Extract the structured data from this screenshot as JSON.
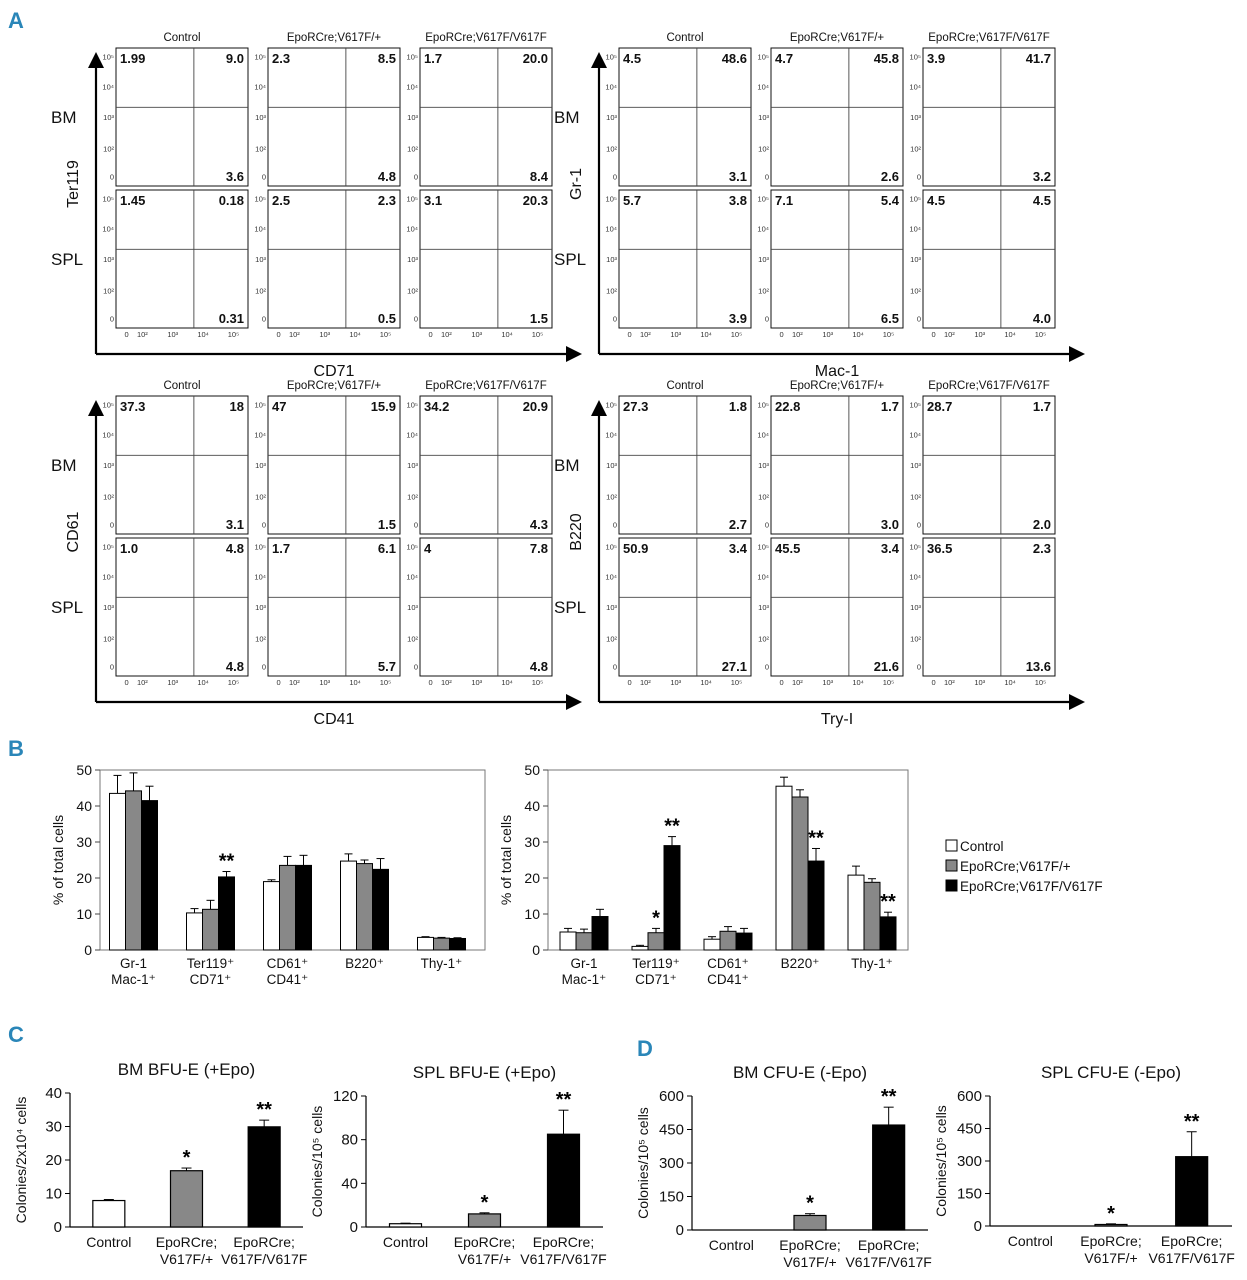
{
  "panels": {
    "A": "A",
    "B": "B",
    "C": "C",
    "D": "D"
  },
  "colors": {
    "control": "#ffffff",
    "heterozygous": "#888888",
    "homozygous": "#000000",
    "panel_letter": "#2a86b8"
  },
  "flow": [
    {
      "id": "ter119-cd71",
      "y_label": "Ter119",
      "x_label": "CD71",
      "columns": [
        "Control",
        "EpoRCre;V617F/+",
        "EpoRCre;V617F/V617F"
      ],
      "rows": [
        "BM",
        "SPL"
      ],
      "tick_labels_x": [
        "0",
        "10²",
        "10³",
        "10⁴",
        "10⁵"
      ],
      "tick_labels_y": [
        "0",
        "10²",
        "10³",
        "10⁴",
        "10⁵"
      ],
      "values": [
        [
          [
            "1.99",
            "9.0",
            "3.6"
          ],
          [
            "2.3",
            "8.5",
            "4.8"
          ],
          [
            "1.7",
            "20.0",
            "8.4"
          ]
        ],
        [
          [
            "1.45",
            "0.18",
            "0.31"
          ],
          [
            "2.5",
            "2.3",
            "0.5"
          ],
          [
            "3.1",
            "20.3",
            "1.5"
          ]
        ]
      ]
    },
    {
      "id": "gr1-mac1",
      "y_label": "Gr-1",
      "x_label": "Mac-1",
      "columns": [
        "Control",
        "EpoRCre;V617F/+",
        "EpoRCre;V617F/V617F"
      ],
      "rows": [
        "BM",
        "SPL"
      ],
      "tick_labels_x": [
        "0",
        "10²",
        "10³",
        "10⁴",
        "10⁵"
      ],
      "tick_labels_y": [
        "0",
        "10²",
        "10³",
        "10⁴",
        "10⁵"
      ],
      "values": [
        [
          [
            "4.5",
            "48.6",
            "3.1"
          ],
          [
            "4.7",
            "45.8",
            "2.6"
          ],
          [
            "3.9",
            "41.7",
            "3.2"
          ]
        ],
        [
          [
            "5.7",
            "3.8",
            "3.9"
          ],
          [
            "7.1",
            "5.4",
            "6.5"
          ],
          [
            "4.5",
            "4.5",
            "4.0"
          ]
        ]
      ]
    },
    {
      "id": "cd61-cd41",
      "y_label": "CD61",
      "x_label": "CD41",
      "columns": [
        "Control",
        "EpoRCre;V617F/+",
        "EpoRCre;V617F/V617F"
      ],
      "rows": [
        "BM",
        "SPL"
      ],
      "tick_labels_x": [
        "0",
        "10²",
        "10³",
        "10⁴",
        "10⁵"
      ],
      "tick_labels_y": [
        "0",
        "10²",
        "10³",
        "10⁴",
        "10⁵"
      ],
      "values": [
        [
          [
            "37.3",
            "18",
            "3.1"
          ],
          [
            "47",
            "15.9",
            "1.5"
          ],
          [
            "34.2",
            "20.9",
            "4.3"
          ]
        ],
        [
          [
            "1.0",
            "4.8",
            "4.8"
          ],
          [
            "1.7",
            "6.1",
            "5.7"
          ],
          [
            "4",
            "7.8",
            "4.8"
          ]
        ]
      ]
    },
    {
      "id": "b220-thy1",
      "y_label": "B220",
      "x_label": "Try-I",
      "columns": [
        "Control",
        "EpoRCre;V617F/+",
        "EpoRCre;V617F/V617F"
      ],
      "rows": [
        "BM",
        "SPL"
      ],
      "tick_labels_x": [
        "0",
        "10²",
        "10³",
        "10⁴",
        "10⁵"
      ],
      "tick_labels_y": [
        "0",
        "10²",
        "10³",
        "10⁴",
        "10⁵"
      ],
      "values": [
        [
          [
            "27.3",
            "1.8",
            "2.7"
          ],
          [
            "22.8",
            "1.7",
            "3.0"
          ],
          [
            "28.7",
            "1.7",
            "2.0"
          ]
        ],
        [
          [
            "50.9",
            "3.4",
            "27.1"
          ],
          [
            "45.5",
            "3.4",
            "21.6"
          ],
          [
            "36.5",
            "2.3",
            "13.6"
          ]
        ]
      ]
    }
  ],
  "legend": {
    "entries": [
      "Control",
      "EpoRCre;V617F/+",
      "EpoRCre;V617F/V617F"
    ]
  },
  "chart_data": [
    {
      "id": "B-bm",
      "type": "bar",
      "ylabel": "% of total cells",
      "ylim": [
        0,
        50
      ],
      "yticks": [
        0,
        10,
        20,
        30,
        40,
        50
      ],
      "categories": [
        [
          "Gr-1",
          "Mac-1⁺"
        ],
        [
          "Ter119⁺",
          "CD71⁺"
        ],
        [
          "CD61⁺",
          "CD41⁺"
        ],
        [
          "B220⁺"
        ],
        [
          "Thy-1⁺"
        ]
      ],
      "series": [
        {
          "name": "Control",
          "values": [
            43.5,
            10.3,
            19.0,
            24.7,
            3.5
          ],
          "errors": [
            5,
            1.2,
            0.5,
            2,
            0.2
          ]
        },
        {
          "name": "EpoRCre;V617F/+",
          "values": [
            44.2,
            11.3,
            23.5,
            24.0,
            3.3
          ],
          "errors": [
            5,
            2.5,
            2.5,
            1,
            0.2
          ]
        },
        {
          "name": "EpoRCre;V617F/V617F",
          "values": [
            41.5,
            20.3,
            23.5,
            22.4,
            3.2
          ],
          "errors": [
            4,
            1.5,
            2.8,
            3,
            0.2
          ]
        }
      ],
      "significance": [
        [
          "",
          "",
          ""
        ],
        [
          "",
          "",
          "**"
        ],
        [
          "",
          "",
          ""
        ],
        [
          "",
          "",
          ""
        ],
        [
          "",
          "",
          ""
        ]
      ]
    },
    {
      "id": "B-spl",
      "type": "bar",
      "ylabel": "% of total cells",
      "ylim": [
        0,
        50
      ],
      "yticks": [
        0,
        10,
        20,
        30,
        40,
        50
      ],
      "categories": [
        [
          "Gr-1",
          "Mac-1⁺"
        ],
        [
          "Ter119⁺",
          "CD71⁺"
        ],
        [
          "CD61⁺",
          "CD41⁺"
        ],
        [
          "B220⁺"
        ],
        [
          "Thy-1⁺"
        ]
      ],
      "series": [
        {
          "name": "Control",
          "values": [
            5.0,
            1.0,
            3.0,
            45.5,
            20.8
          ],
          "errors": [
            1.0,
            0.3,
            0.7,
            2.5,
            2.5
          ]
        },
        {
          "name": "EpoRCre;V617F/+",
          "values": [
            4.8,
            4.8,
            5.2,
            42.5,
            18.8
          ],
          "errors": [
            1.0,
            1.2,
            1.3,
            2.0,
            1.0
          ]
        },
        {
          "name": "EpoRCre;V617F/V617F",
          "values": [
            9.3,
            29.0,
            4.7,
            24.7,
            9.2
          ],
          "errors": [
            2.0,
            2.5,
            1.3,
            3.5,
            1.3
          ]
        }
      ],
      "significance": [
        [
          "",
          "",
          ""
        ],
        [
          "",
          "*",
          "**"
        ],
        [
          "",
          "",
          ""
        ],
        [
          "",
          "",
          "**"
        ],
        [
          "",
          "",
          "**"
        ]
      ]
    },
    {
      "id": "C-bm",
      "type": "bar",
      "title": "BM BFU-E (+Epo)",
      "ylabel": "Colonies/2x10⁴ cells",
      "ylim": [
        0,
        40
      ],
      "yticks": [
        0,
        10,
        20,
        30,
        40
      ],
      "categories": [
        [
          "Control"
        ],
        [
          "EpoRCre;",
          "V617F/+"
        ],
        [
          "EpoRCre;",
          "V617F/V617F"
        ]
      ],
      "values": [
        7.9,
        16.8,
        29.9
      ],
      "errors": [
        0.3,
        0.8,
        2.0
      ],
      "significance": [
        "",
        "*",
        "**"
      ]
    },
    {
      "id": "C-spl",
      "type": "bar",
      "title": "SPL BFU-E (+Epo)",
      "ylabel": "Colonies/10⁵ cells",
      "ylim": [
        0,
        120
      ],
      "yticks": [
        0,
        40,
        80,
        120
      ],
      "categories": [
        [
          "Control"
        ],
        [
          "EpoRCre;",
          "V617F/+"
        ],
        [
          "EpoRCre;",
          "V617F/V617F"
        ]
      ],
      "values": [
        3,
        12,
        85
      ],
      "errors": [
        0.5,
        1,
        22
      ],
      "significance": [
        "",
        "*",
        "**"
      ]
    },
    {
      "id": "D-bm",
      "type": "bar",
      "title": "BM CFU-E (-Epo)",
      "ylabel": "Colonies/10⁵ cells",
      "ylim": [
        0,
        600
      ],
      "yticks": [
        0,
        150,
        300,
        450,
        600
      ],
      "categories": [
        [
          "Control"
        ],
        [
          "EpoRCre;",
          "V617F/+"
        ],
        [
          "EpoRCre;",
          "V617F/V617F"
        ]
      ],
      "values": [
        0,
        65,
        470
      ],
      "errors": [
        0,
        8,
        80
      ],
      "significance": [
        "",
        "*",
        "**"
      ]
    },
    {
      "id": "D-spl",
      "type": "bar",
      "title": "SPL CFU-E (-Epo)",
      "ylabel": "Colonies/10⁵ cells",
      "ylim": [
        0,
        600
      ],
      "yticks": [
        0,
        150,
        300,
        450,
        600
      ],
      "categories": [
        [
          "Control"
        ],
        [
          "EpoRCre;",
          "V617F/+"
        ],
        [
          "EpoRCre;",
          "V617F/V617F"
        ]
      ],
      "values": [
        0,
        7,
        320
      ],
      "errors": [
        0,
        3,
        115
      ],
      "significance": [
        "",
        "*",
        "**"
      ]
    }
  ]
}
